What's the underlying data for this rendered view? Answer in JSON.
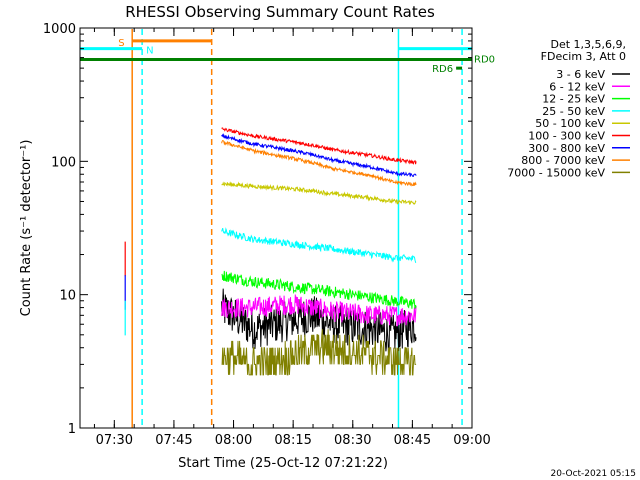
{
  "chart_data": {
    "type": "line",
    "title": "RHESSI Observing Summary Count Rates",
    "xlabel": "Start Time (25-Oct-12 07:21:22)",
    "ylabel": "Count Rate (s⁻¹ detector⁻¹)",
    "yscale": "log",
    "ylim": [
      1,
      1000
    ],
    "xlim": [
      "07:21:22",
      "09:00"
    ],
    "x_ticks": [
      "07:30",
      "07:45",
      "08:00",
      "08:15",
      "08:30",
      "08:45",
      "09:00"
    ],
    "y_ticks": [
      "1",
      "10",
      "100",
      "1000"
    ],
    "legend_header": [
      "Det 1,3,5,6,9,",
      "FDecim 3, Att 0"
    ],
    "legend_position": "right",
    "series": [
      {
        "name": "3 - 6 keV",
        "color": "#000000",
        "x": [
          "07:57",
          "08:05",
          "08:15",
          "08:20",
          "08:25",
          "08:35",
          "08:40",
          "08:46"
        ],
        "values": [
          8,
          5.5,
          6.5,
          7,
          6,
          5.5,
          5,
          6
        ]
      },
      {
        "name": "6 - 12 keV",
        "color": "#ff00ff",
        "x": [
          "07:57",
          "08:05",
          "08:15",
          "08:20",
          "08:25",
          "08:35",
          "08:40",
          "08:46"
        ],
        "values": [
          8,
          8,
          8.5,
          8,
          7.5,
          7,
          7,
          7
        ]
      },
      {
        "name": "12 - 25 keV",
        "color": "#00ff00",
        "x": [
          "07:57",
          "08:05",
          "08:15",
          "08:20",
          "08:25",
          "08:35",
          "08:40",
          "08:46"
        ],
        "values": [
          14,
          12.5,
          11.5,
          11,
          10.5,
          9.5,
          9,
          8.5
        ]
      },
      {
        "name": "25 - 50 keV",
        "color": "#00ffff",
        "x": [
          "07:57",
          "08:05",
          "08:15",
          "08:20",
          "08:25",
          "08:35",
          "08:40",
          "08:46"
        ],
        "values": [
          30,
          26,
          24,
          23,
          22,
          20,
          19,
          18.5
        ]
      },
      {
        "name": "50 - 100 keV",
        "color": "#c8c800",
        "x": [
          "07:57",
          "08:05",
          "08:15",
          "08:20",
          "08:25",
          "08:35",
          "08:40",
          "08:46"
        ],
        "values": [
          68,
          65,
          62,
          60,
          57,
          53,
          50,
          49
        ]
      },
      {
        "name": "100 - 300 keV",
        "color": "#ff0000",
        "x": [
          "07:57",
          "08:05",
          "08:15",
          "08:20",
          "08:25",
          "08:35",
          "08:40",
          "08:46"
        ],
        "values": [
          175,
          155,
          140,
          132,
          122,
          110,
          103,
          98
        ]
      },
      {
        "name": "300 - 800 keV",
        "color": "#0000ff",
        "x": [
          "07:57",
          "08:05",
          "08:15",
          "08:20",
          "08:25",
          "08:35",
          "08:40",
          "08:46"
        ],
        "values": [
          155,
          135,
          120,
          112,
          102,
          90,
          82,
          78
        ]
      },
      {
        "name": "800 - 7000 keV",
        "color": "#ff8000",
        "x": [
          "07:57",
          "08:05",
          "08:15",
          "08:20",
          "08:25",
          "08:35",
          "08:40",
          "08:46"
        ],
        "values": [
          140,
          120,
          105,
          97,
          88,
          78,
          70,
          67
        ]
      },
      {
        "name": "7000 - 15000 keV",
        "color": "#808000",
        "x": [
          "07:57",
          "08:05",
          "08:15",
          "08:20",
          "08:25",
          "08:35",
          "08:40",
          "08:46"
        ],
        "values": [
          3.5,
          3,
          3.5,
          4,
          4,
          3.5,
          3.2,
          3
        ]
      }
    ],
    "spike": {
      "x": "07:34:30",
      "values": [
        25,
        14,
        9
      ],
      "colors": [
        "#ff0000",
        "#0000ff",
        "#00ffff"
      ]
    },
    "markers": [
      {
        "label": "S",
        "color": "#ff8000",
        "x": "07:34:30",
        "end": "07:54:30",
        "level": 800
      },
      {
        "label": "N",
        "color": "#00ffff",
        "x": "07:21:22",
        "end": "07:37:00",
        "level": 700
      },
      {
        "label": "",
        "color": "#00ffff",
        "x": "08:41:30",
        "end": "09:00",
        "level": 700
      },
      {
        "label": "RD0",
        "color": "#008000",
        "x": "07:21:22",
        "end": "09:00",
        "level": 580
      },
      {
        "label": "RD6",
        "color": "#008000",
        "x": "08:56",
        "end": "08:57:30",
        "level": 500
      }
    ],
    "vlines": [
      {
        "x": "07:34:30",
        "color": "#ff8000",
        "style": "solid"
      },
      {
        "x": "07:37:00",
        "color": "#00ffff",
        "style": "dashed"
      },
      {
        "x": "07:54:30",
        "color": "#ff8000",
        "style": "dashed"
      },
      {
        "x": "08:41:30",
        "color": "#00ffff",
        "style": "solid"
      },
      {
        "x": "08:57:30",
        "color": "#00ffff",
        "style": "dashed"
      }
    ],
    "footer_timestamp": "20-Oct-2021 05:15"
  }
}
